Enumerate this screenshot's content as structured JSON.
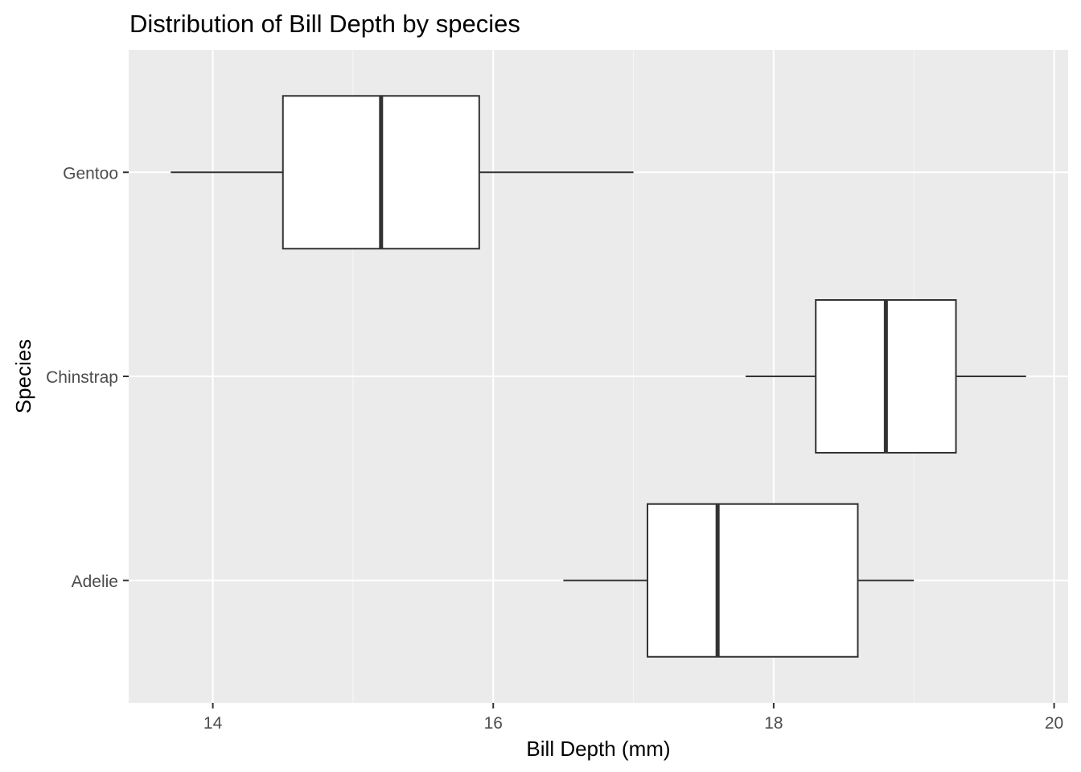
{
  "chart_data": {
    "type": "boxplot",
    "orientation": "horizontal",
    "title": "Distribution of Bill Depth by species",
    "xlabel": "Bill Depth (mm)",
    "ylabel": "Species",
    "xlim": [
      13.4,
      20.1
    ],
    "x_ticks": [
      14,
      16,
      18,
      20
    ],
    "x_tick_labels": [
      "14",
      "16",
      "18",
      "20"
    ],
    "categories": [
      "Adelie",
      "Chinstrap",
      "Gentoo"
    ],
    "boxes": [
      {
        "category": "Adelie",
        "min": 16.5,
        "q1": 17.1,
        "median": 17.6,
        "q3": 18.6,
        "max": 19.0
      },
      {
        "category": "Chinstrap",
        "min": 17.8,
        "q1": 18.3,
        "median": 18.8,
        "q3": 19.3,
        "max": 19.8
      },
      {
        "category": "Gentoo",
        "min": 13.7,
        "q1": 14.5,
        "median": 15.2,
        "q3": 15.9,
        "max": 17.0
      }
    ],
    "grid": true,
    "legend": "none",
    "colors": {
      "panel_background": "#ebebeb",
      "grid_major": "#ffffff",
      "grid_minor": "#f5f5f5",
      "box_fill": "#ffffff",
      "box_stroke": "#333333",
      "tick_text": "#4d4d4d",
      "tick_mark": "#333333"
    }
  }
}
